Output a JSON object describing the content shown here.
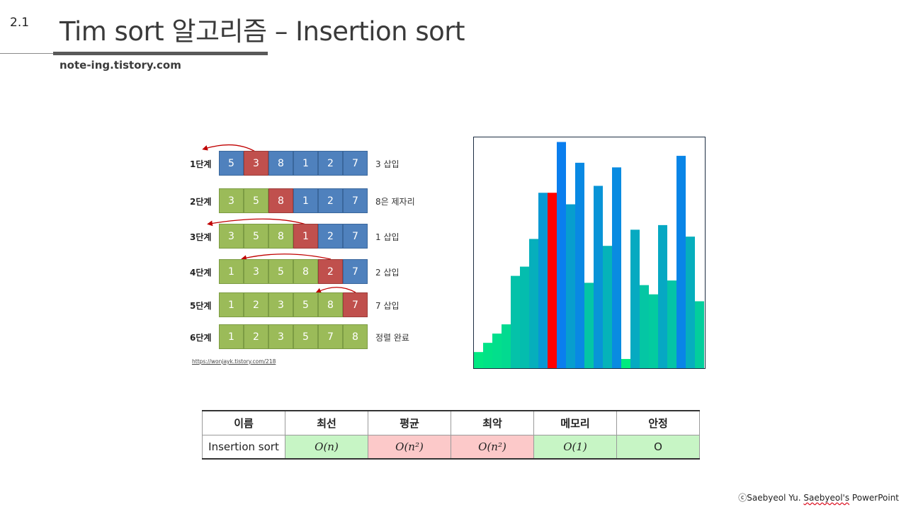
{
  "slide": {
    "number": "2.1",
    "title": "Tim sort 알고리즘 – Insertion sort",
    "site": "note-ing.tistory.com"
  },
  "steps": [
    {
      "label": "1단계",
      "cells": [
        {
          "v": "5",
          "c": "blue"
        },
        {
          "v": "3",
          "c": "red"
        },
        {
          "v": "8",
          "c": "blue"
        },
        {
          "v": "1",
          "c": "blue"
        },
        {
          "v": "2",
          "c": "blue"
        },
        {
          "v": "7",
          "c": "blue"
        }
      ],
      "note": "3 삽입"
    },
    {
      "label": "2단계",
      "cells": [
        {
          "v": "3",
          "c": "green"
        },
        {
          "v": "5",
          "c": "green"
        },
        {
          "v": "8",
          "c": "red"
        },
        {
          "v": "1",
          "c": "blue"
        },
        {
          "v": "2",
          "c": "blue"
        },
        {
          "v": "7",
          "c": "blue"
        }
      ],
      "note": "8은 제자리"
    },
    {
      "label": "3단계",
      "cells": [
        {
          "v": "3",
          "c": "green"
        },
        {
          "v": "5",
          "c": "green"
        },
        {
          "v": "8",
          "c": "green"
        },
        {
          "v": "1",
          "c": "red"
        },
        {
          "v": "2",
          "c": "blue"
        },
        {
          "v": "7",
          "c": "blue"
        }
      ],
      "note": "1 삽입"
    },
    {
      "label": "4단계",
      "cells": [
        {
          "v": "1",
          "c": "green"
        },
        {
          "v": "3",
          "c": "green"
        },
        {
          "v": "5",
          "c": "green"
        },
        {
          "v": "8",
          "c": "green"
        },
        {
          "v": "2",
          "c": "red"
        },
        {
          "v": "7",
          "c": "blue"
        }
      ],
      "note": "2 삽입"
    },
    {
      "label": "5단계",
      "cells": [
        {
          "v": "1",
          "c": "green"
        },
        {
          "v": "2",
          "c": "green"
        },
        {
          "v": "3",
          "c": "green"
        },
        {
          "v": "5",
          "c": "green"
        },
        {
          "v": "8",
          "c": "green"
        },
        {
          "v": "7",
          "c": "red"
        }
      ],
      "note": "7 삽입"
    },
    {
      "label": "6단계",
      "cells": [
        {
          "v": "1",
          "c": "green"
        },
        {
          "v": "2",
          "c": "green"
        },
        {
          "v": "3",
          "c": "green"
        },
        {
          "v": "5",
          "c": "green"
        },
        {
          "v": "7",
          "c": "green"
        },
        {
          "v": "8",
          "c": "green"
        }
      ],
      "note": "정렬 완료"
    }
  ],
  "source_link": "https://wonjayk.tistory.com/218",
  "visualization": {
    "bar_heights": [
      0.07,
      0.11,
      0.15,
      0.19,
      0.4,
      0.44,
      0.56,
      0.76,
      0.76,
      0.98,
      0.71,
      0.89,
      0.37,
      0.79,
      0.53,
      0.87,
      0.04,
      0.6,
      0.36,
      0.32,
      0.62,
      0.38,
      0.92,
      0.57,
      0.29
    ],
    "highlight_index": 8,
    "colors": {
      "highlight": "#ff0000",
      "low": "#00f07a",
      "high": "#0a7cf0"
    }
  },
  "table": {
    "headers": [
      "이름",
      "최선",
      "평균",
      "최악",
      "메모리",
      "안정"
    ],
    "row": [
      {
        "text": "Insertion sort",
        "style": "name"
      },
      {
        "text": "O(n)",
        "style": "green"
      },
      {
        "text": "O(n²)",
        "style": "pink"
      },
      {
        "text": "O(n²)",
        "style": "pink"
      },
      {
        "text": "O(1)",
        "style": "green"
      },
      {
        "text": "O",
        "style": "green"
      }
    ]
  },
  "footer": {
    "prefix": "ⓒSaebyeol Yu. ",
    "underlined": "Saebyeol's",
    "suffix": " PowerPoint"
  }
}
